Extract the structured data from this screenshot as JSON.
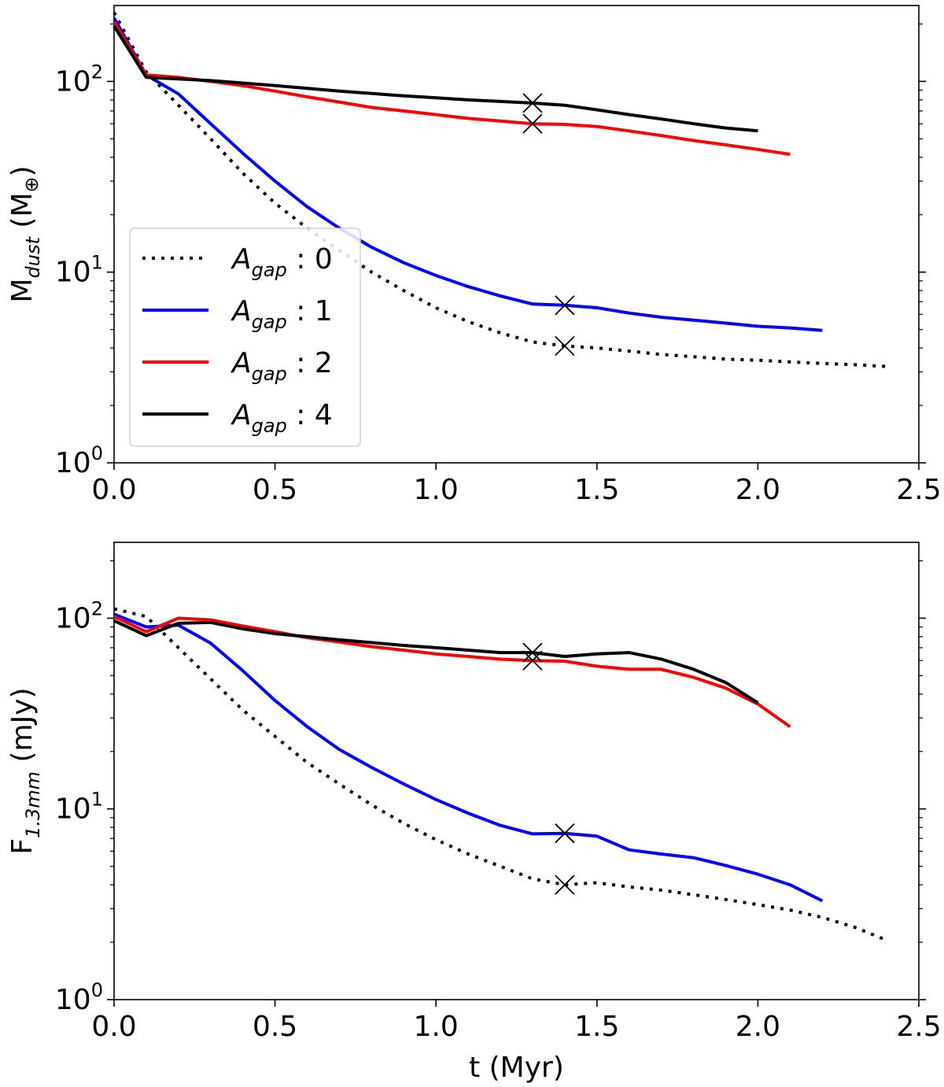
{
  "chart_data": [
    {
      "type": "line",
      "id": "top",
      "yscale": "log",
      "xlim": [
        0,
        2.5
      ],
      "ylim": [
        1,
        250
      ],
      "x_ticks": [
        0.0,
        0.5,
        1.0,
        1.5,
        2.0,
        2.5
      ],
      "x_tick_labels": [
        "0.0",
        "0.5",
        "1.0",
        "1.5",
        "2.0",
        "2.5"
      ],
      "y_ticks": [
        1,
        10,
        100
      ],
      "y_tick_labels": [
        {
          "base": "10",
          "exp": "0"
        },
        {
          "base": "10",
          "exp": "1"
        },
        {
          "base": "10",
          "exp": "2"
        }
      ],
      "xlabel": "",
      "ylabel": {
        "main": "M",
        "sub": "dust",
        "unit": " (M",
        "unit_sub": "⊕",
        "close": ")"
      },
      "legend": {
        "position": "center-left",
        "entries": [
          {
            "prefix": "A",
            "sub": "gap",
            "suffix": " : 0"
          },
          {
            "prefix": "A",
            "sub": "gap",
            "suffix": " : 1"
          },
          {
            "prefix": "A",
            "sub": "gap",
            "suffix": " : 2"
          },
          {
            "prefix": "A",
            "sub": "gap",
            "suffix": " : 4"
          }
        ]
      },
      "series": [
        {
          "name": "A_gap : 0",
          "color": "#000000",
          "dash": "dotted",
          "x": [
            0,
            0.1,
            0.2,
            0.3,
            0.4,
            0.5,
            0.6,
            0.7,
            0.8,
            0.9,
            1.0,
            1.1,
            1.2,
            1.3,
            1.4,
            1.5,
            1.6,
            1.7,
            1.8,
            1.9,
            2.0,
            2.1,
            2.2,
            2.3,
            2.4
          ],
          "y": [
            230,
            112,
            75,
            50,
            33,
            23,
            17,
            13,
            10,
            8,
            6.5,
            5.5,
            4.8,
            4.3,
            4.1,
            4.0,
            3.85,
            3.7,
            3.6,
            3.5,
            3.45,
            3.38,
            3.32,
            3.27,
            3.2
          ],
          "marker": {
            "x": 1.4,
            "y": 4.1
          }
        },
        {
          "name": "A_gap : 1",
          "color": "#0000ff",
          "dash": "solid",
          "x": [
            0,
            0.1,
            0.2,
            0.3,
            0.4,
            0.5,
            0.6,
            0.7,
            0.8,
            0.9,
            1.0,
            1.1,
            1.2,
            1.3,
            1.4,
            1.5,
            1.6,
            1.7,
            1.8,
            1.9,
            2.0,
            2.1,
            2.2
          ],
          "y": [
            215,
            108,
            86,
            60,
            42,
            30,
            22,
            17,
            13.5,
            11.2,
            9.6,
            8.4,
            7.5,
            6.8,
            6.7,
            6.5,
            6.1,
            5.8,
            5.6,
            5.4,
            5.2,
            5.1,
            4.95
          ],
          "marker": {
            "x": 1.4,
            "y": 6.7
          }
        },
        {
          "name": "A_gap : 2",
          "color": "#ff0000",
          "dash": "solid",
          "x": [
            0,
            0.1,
            0.2,
            0.3,
            0.4,
            0.5,
            0.6,
            0.7,
            0.8,
            0.9,
            1.0,
            1.1,
            1.2,
            1.3,
            1.4,
            1.5,
            1.6,
            1.7,
            1.8,
            1.9,
            2.0,
            2.1
          ],
          "y": [
            205,
            108,
            105,
            100,
            95,
            89,
            83,
            78,
            73,
            70,
            67,
            64,
            62,
            60,
            59.5,
            58,
            55,
            52,
            49,
            46.5,
            44,
            41.5
          ],
          "marker": {
            "x": 1.3,
            "y": 60
          }
        },
        {
          "name": "A_gap : 4",
          "color": "#000000",
          "dash": "solid",
          "x": [
            0,
            0.1,
            0.2,
            0.3,
            0.4,
            0.5,
            0.6,
            0.7,
            0.8,
            0.9,
            1.0,
            1.1,
            1.2,
            1.3,
            1.4,
            1.5,
            1.6,
            1.7,
            1.8,
            1.9,
            2.0
          ],
          "y": [
            195,
            105,
            103,
            101,
            98,
            95,
            92,
            89,
            86.5,
            84,
            82,
            80,
            78.5,
            77,
            75,
            71,
            67,
            63.5,
            60,
            57,
            55
          ],
          "marker": {
            "x": 1.3,
            "y": 77
          }
        }
      ]
    },
    {
      "type": "line",
      "id": "bottom",
      "yscale": "log",
      "xlim": [
        0,
        2.5
      ],
      "ylim": [
        1,
        250
      ],
      "x_ticks": [
        0.0,
        0.5,
        1.0,
        1.5,
        2.0,
        2.5
      ],
      "x_tick_labels": [
        "0.0",
        "0.5",
        "1.0",
        "1.5",
        "2.0",
        "2.5"
      ],
      "y_ticks": [
        1,
        10,
        100
      ],
      "y_tick_labels": [
        {
          "base": "10",
          "exp": "0"
        },
        {
          "base": "10",
          "exp": "1"
        },
        {
          "base": "10",
          "exp": "2"
        }
      ],
      "xlabel": "t (Myr)",
      "ylabel": {
        "main": "F",
        "sub": "1.3mm",
        "unit": " (mJy)",
        "unit_sub": "",
        "close": ""
      },
      "series": [
        {
          "name": "A_gap : 0",
          "color": "#000000",
          "dash": "dotted",
          "x": [
            0,
            0.1,
            0.2,
            0.3,
            0.4,
            0.5,
            0.6,
            0.7,
            0.8,
            0.9,
            1.0,
            1.1,
            1.2,
            1.3,
            1.4,
            1.5,
            1.6,
            1.7,
            1.8,
            1.9,
            2.0,
            2.1,
            2.2,
            2.3,
            2.4
          ],
          "y": [
            112,
            102,
            70,
            48,
            33,
            24,
            17.5,
            13.5,
            10.5,
            8.4,
            6.9,
            5.8,
            5.0,
            4.3,
            4.0,
            4.1,
            3.9,
            3.75,
            3.55,
            3.35,
            3.15,
            2.95,
            2.7,
            2.4,
            2.05
          ],
          "marker": {
            "x": 1.4,
            "y": 4.0
          }
        },
        {
          "name": "A_gap : 1",
          "color": "#0000ff",
          "dash": "solid",
          "x": [
            0,
            0.1,
            0.2,
            0.3,
            0.4,
            0.5,
            0.6,
            0.7,
            0.8,
            0.9,
            1.0,
            1.1,
            1.2,
            1.3,
            1.4,
            1.5,
            1.6,
            1.7,
            1.8,
            1.9,
            2.0,
            2.1,
            2.2
          ],
          "y": [
            105,
            90,
            92,
            74,
            53,
            37,
            27,
            20.5,
            16.5,
            13.5,
            11.2,
            9.5,
            8.2,
            7.4,
            7.45,
            7.2,
            6.1,
            5.8,
            5.55,
            5.05,
            4.55,
            4.0,
            3.3
          ],
          "marker": {
            "x": 1.4,
            "y": 7.45
          }
        },
        {
          "name": "A_gap : 2",
          "color": "#ff0000",
          "dash": "solid",
          "x": [
            0,
            0.1,
            0.2,
            0.3,
            0.4,
            0.5,
            0.6,
            0.7,
            0.8,
            0.9,
            1.0,
            1.1,
            1.2,
            1.3,
            1.4,
            1.5,
            1.6,
            1.7,
            1.8,
            1.9,
            2.0,
            2.1
          ],
          "y": [
            102,
            85,
            100,
            98,
            91,
            85,
            79,
            75,
            71,
            68,
            65,
            63,
            61,
            60,
            59.5,
            56,
            54,
            54,
            49,
            43,
            35.5,
            27
          ],
          "marker": {
            "x": 1.3,
            "y": 60
          }
        },
        {
          "name": "A_gap : 4",
          "color": "#000000",
          "dash": "solid",
          "x": [
            0,
            0.1,
            0.2,
            0.3,
            0.4,
            0.5,
            0.6,
            0.7,
            0.8,
            0.9,
            1.0,
            1.1,
            1.2,
            1.3,
            1.4,
            1.5,
            1.6,
            1.7,
            1.8,
            1.9,
            2.0
          ],
          "y": [
            97,
            81,
            94,
            95,
            88,
            83,
            80,
            77,
            74.5,
            72,
            70,
            68,
            66,
            66,
            63,
            65,
            66,
            61,
            54,
            46,
            36
          ],
          "marker": {
            "x": 1.3,
            "y": 66
          }
        }
      ]
    }
  ]
}
